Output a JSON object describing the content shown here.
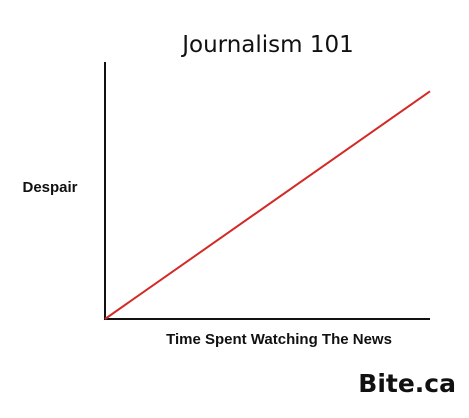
{
  "chart_data": {
    "type": "line",
    "title": "Journalism 101",
    "xlabel": "Time Spent Watching The News",
    "ylabel": "Despair",
    "xlim": [
      0,
      1
    ],
    "ylim": [
      0,
      1
    ],
    "grid": false,
    "series": [
      {
        "color": "#d42a26",
        "x": [
          0,
          1
        ],
        "values": [
          0,
          0.99
        ]
      }
    ]
  },
  "watermark": "Bite.ca",
  "colors": {
    "axis": "#111111",
    "line": "#d42a26",
    "background": "#ffffff"
  }
}
